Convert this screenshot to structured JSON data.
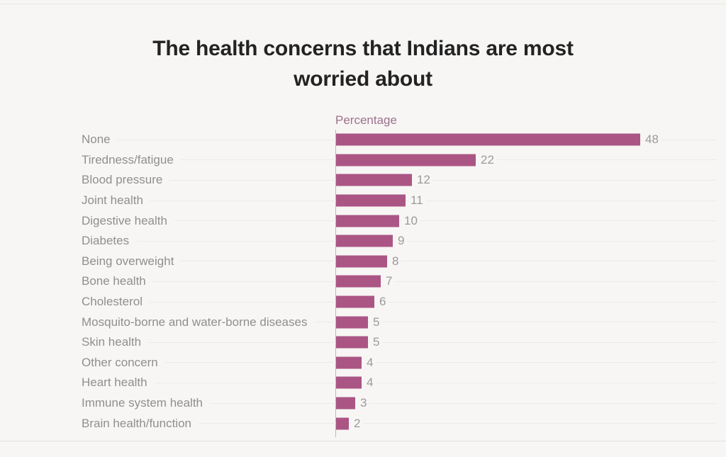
{
  "page": {
    "background": "#f7f6f4"
  },
  "title": "The health concerns that Indians are most worried about",
  "colors": {
    "bar": "#ab5585",
    "axis_label": "#9e7190",
    "category_label": "#8f8f8f",
    "value_label": "#9b9b9b",
    "title": "#232323",
    "axis_line": "#bdb9b5",
    "gridline": "#eceae6"
  },
  "chart_data": {
    "type": "bar",
    "orientation": "horizontal",
    "title": "The health concerns that Indians are most worried about",
    "xlabel": "Percentage",
    "ylabel": "",
    "xlim": [
      0,
      48
    ],
    "grid": true,
    "legend": false,
    "categories": [
      "None",
      "Tiredness/fatigue",
      "Blood pressure",
      "Joint health",
      "Digestive health",
      "Diabetes",
      "Being overweight",
      "Bone health",
      "Cholesterol",
      "Mosquito-borne and water-borne diseases",
      "Skin health",
      "Other concern",
      "Heart health",
      "Immune system health",
      "Brain health/function"
    ],
    "values": [
      48,
      22,
      12,
      11,
      10,
      9,
      8,
      7,
      6,
      5,
      5,
      4,
      4,
      3,
      2
    ]
  }
}
